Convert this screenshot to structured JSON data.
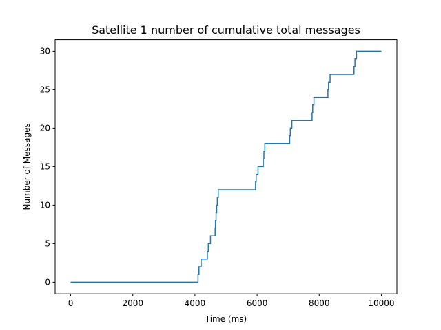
{
  "chart_data": {
    "type": "line",
    "title": "Satellite 1 number of cumulative total messages",
    "xlabel": "Time (ms)",
    "ylabel": "Number of Messages",
    "xlim": [
      -500,
      10500
    ],
    "ylim": [
      -1.5,
      31.5
    ],
    "xticks": [
      0,
      2000,
      4000,
      6000,
      8000,
      10000
    ],
    "yticks": [
      0,
      5,
      10,
      15,
      20,
      25,
      30
    ],
    "grid": false,
    "series": [
      {
        "color": "#1f77b4",
        "step": "post",
        "points": [
          [
            0,
            0
          ],
          [
            4100,
            1
          ],
          [
            4130,
            2
          ],
          [
            4200,
            3
          ],
          [
            4400,
            4
          ],
          [
            4430,
            5
          ],
          [
            4500,
            6
          ],
          [
            4650,
            7
          ],
          [
            4660,
            8
          ],
          [
            4680,
            9
          ],
          [
            4700,
            10
          ],
          [
            4720,
            11
          ],
          [
            4750,
            12
          ],
          [
            5950,
            13
          ],
          [
            5970,
            14
          ],
          [
            6030,
            15
          ],
          [
            6200,
            16
          ],
          [
            6220,
            17
          ],
          [
            6250,
            18
          ],
          [
            7050,
            19
          ],
          [
            7070,
            20
          ],
          [
            7120,
            21
          ],
          [
            7770,
            22
          ],
          [
            7790,
            23
          ],
          [
            7830,
            24
          ],
          [
            8280,
            25
          ],
          [
            8300,
            26
          ],
          [
            8350,
            27
          ],
          [
            9120,
            28
          ],
          [
            9150,
            29
          ],
          [
            9200,
            30
          ],
          [
            10000,
            30
          ]
        ]
      }
    ]
  }
}
